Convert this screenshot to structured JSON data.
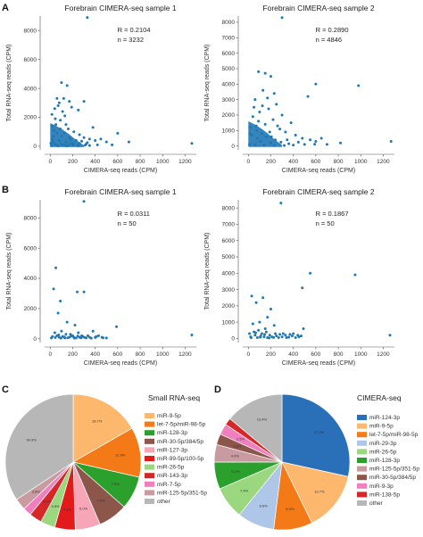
{
  "panel_labels": {
    "A": "A",
    "B": "B",
    "C": "C",
    "D": "D"
  },
  "chart_data": [
    {
      "id": "A1",
      "type": "scatter",
      "title": "Forebrain CIMERA-seq sample 1",
      "xlabel": "CIMERA-seq reads (CPM)",
      "ylabel": "Total RNA-seq reads (CPM)",
      "xlim": [
        -50,
        1300
      ],
      "ylim": [
        -250,
        9000
      ],
      "xticks": [
        0,
        200,
        400,
        600,
        800,
        1000,
        1200
      ],
      "yticks": [
        0,
        2000,
        4000,
        6000,
        8000
      ],
      "stats": {
        "r": "R = 0.2104",
        "n": "n = 3232"
      },
      "color": "#1f77b4",
      "points": [
        [
          330,
          8900
        ],
        [
          100,
          4400
        ],
        [
          150,
          4200
        ],
        [
          60,
          3300
        ],
        [
          120,
          3300
        ],
        [
          170,
          3100
        ],
        [
          300,
          3100
        ],
        [
          80,
          3000
        ],
        [
          190,
          2700
        ],
        [
          40,
          2600
        ],
        [
          250,
          2500
        ],
        [
          110,
          2400
        ],
        [
          380,
          1300
        ],
        [
          140,
          1500
        ],
        [
          20,
          1400
        ],
        [
          90,
          1800
        ],
        [
          130,
          2100
        ],
        [
          30,
          1100
        ],
        [
          160,
          1200
        ],
        [
          210,
          1000
        ],
        [
          60,
          900
        ],
        [
          260,
          800
        ],
        [
          100,
          700
        ],
        [
          300,
          600
        ],
        [
          350,
          500
        ],
        [
          450,
          500
        ],
        [
          400,
          400
        ],
        [
          500,
          300
        ],
        [
          170,
          600
        ],
        [
          230,
          400
        ],
        [
          20,
          500
        ],
        [
          80,
          400
        ],
        [
          140,
          300
        ],
        [
          190,
          200
        ],
        [
          260,
          200
        ],
        [
          320,
          150
        ],
        [
          40,
          150
        ],
        [
          110,
          100
        ],
        [
          200,
          80
        ],
        [
          10,
          50
        ],
        [
          70,
          30
        ],
        [
          150,
          20
        ],
        [
          250,
          20
        ],
        [
          350,
          50
        ],
        [
          600,
          900
        ],
        [
          700,
          300
        ],
        [
          1260,
          200
        ],
        [
          550,
          100
        ],
        [
          30,
          700
        ],
        [
          50,
          1500
        ],
        [
          15,
          2200
        ],
        [
          70,
          2800
        ],
        [
          45,
          1900
        ],
        [
          90,
          1200
        ],
        [
          125,
          900
        ],
        [
          180,
          450
        ],
        [
          210,
          150
        ],
        [
          280,
          350
        ],
        [
          330,
          250
        ],
        [
          420,
          100
        ],
        [
          5,
          200
        ],
        [
          25,
          300
        ],
        [
          55,
          80
        ],
        [
          95,
          180
        ],
        [
          135,
          60
        ],
        [
          165,
          120
        ],
        [
          245,
          90
        ],
        [
          310,
          70
        ]
      ]
    },
    {
      "id": "A2",
      "type": "scatter",
      "title": "Forebrain CIMERA-seq sample 2",
      "xlabel": "CIMERA-seq reads (CPM)",
      "ylabel": "Total RNA-seq reads (CPM)",
      "xlim": [
        -50,
        1300
      ],
      "ylim": [
        -250,
        8400
      ],
      "xticks": [
        0,
        200,
        400,
        600,
        800,
        1000,
        1200
      ],
      "yticks": [
        0,
        1000,
        2000,
        3000,
        4000,
        5000,
        6000,
        7000,
        8000
      ],
      "stats": {
        "r": "R = 0.2890",
        "n": "n = 4846"
      },
      "color": "#1f77b4",
      "points": [
        [
          300,
          8300
        ],
        [
          90,
          4800
        ],
        [
          150,
          4700
        ],
        [
          200,
          4500
        ],
        [
          600,
          4000
        ],
        [
          980,
          3900
        ],
        [
          530,
          3200
        ],
        [
          130,
          3600
        ],
        [
          60,
          3000
        ],
        [
          250,
          2700
        ],
        [
          180,
          2400
        ],
        [
          100,
          2200
        ],
        [
          300,
          2000
        ],
        [
          40,
          1900
        ],
        [
          220,
          1700
        ],
        [
          380,
          1500
        ],
        [
          150,
          1400
        ],
        [
          70,
          1300
        ],
        [
          20,
          1200
        ],
        [
          280,
          1100
        ],
        [
          330,
          900
        ],
        [
          120,
          800
        ],
        [
          420,
          700
        ],
        [
          480,
          500
        ],
        [
          550,
          400
        ],
        [
          600,
          300
        ],
        [
          650,
          500
        ],
        [
          1270,
          300
        ],
        [
          820,
          200
        ],
        [
          700,
          100
        ],
        [
          160,
          600
        ],
        [
          240,
          400
        ],
        [
          80,
          500
        ],
        [
          30,
          700
        ],
        [
          110,
          300
        ],
        [
          200,
          200
        ],
        [
          290,
          250
        ],
        [
          360,
          150
        ],
        [
          10,
          100
        ],
        [
          60,
          80
        ],
        [
          140,
          50
        ],
        [
          230,
          40
        ],
        [
          320,
          30
        ],
        [
          400,
          60
        ],
        [
          500,
          100
        ],
        [
          590,
          120
        ],
        [
          190,
          900
        ],
        [
          260,
          1300
        ],
        [
          90,
          1600
        ],
        [
          50,
          2500
        ],
        [
          170,
          3100
        ],
        [
          230,
          3400
        ],
        [
          125,
          2600
        ],
        [
          15,
          800
        ],
        [
          75,
          1000
        ],
        [
          205,
          600
        ],
        [
          345,
          400
        ],
        [
          445,
          250
        ]
      ]
    },
    {
      "id": "B1",
      "type": "scatter",
      "title": "Forebrain CIMERA-seq sample 1",
      "xlabel": "CIMERA-seq reads (CPM)",
      "ylabel": "Total RNA-seq reads (CPM)",
      "xlim": [
        -50,
        1300
      ],
      "ylim": [
        -250,
        9200
      ],
      "xticks": [
        0,
        200,
        400,
        600,
        800,
        1000,
        1200
      ],
      "yticks": [
        0,
        2000,
        4000,
        6000,
        8000
      ],
      "stats": {
        "r": "R = 0.0311",
        "n": "n = 50"
      },
      "color": "#1f77b4",
      "points": [
        [
          300,
          9100
        ],
        [
          50,
          4700
        ],
        [
          30,
          3300
        ],
        [
          240,
          3100
        ],
        [
          300,
          3100
        ],
        [
          90,
          2500
        ],
        [
          70,
          1700
        ],
        [
          150,
          1100
        ],
        [
          220,
          900
        ],
        [
          590,
          800
        ],
        [
          380,
          500
        ],
        [
          1260,
          250
        ],
        [
          20,
          150
        ],
        [
          60,
          200
        ],
        [
          80,
          100
        ],
        [
          110,
          150
        ],
        [
          140,
          300
        ],
        [
          170,
          100
        ],
        [
          200,
          200
        ],
        [
          230,
          50
        ],
        [
          260,
          100
        ],
        [
          290,
          150
        ],
        [
          320,
          50
        ],
        [
          350,
          100
        ],
        [
          400,
          80
        ],
        [
          430,
          200
        ],
        [
          460,
          100
        ],
        [
          500,
          50
        ],
        [
          40,
          400
        ],
        [
          100,
          500
        ],
        [
          130,
          50
        ],
        [
          180,
          300
        ],
        [
          210,
          100
        ],
        [
          250,
          400
        ],
        [
          280,
          200
        ],
        [
          10,
          50
        ],
        [
          45,
          80
        ],
        [
          75,
          250
        ],
        [
          95,
          40
        ],
        [
          125,
          120
        ],
        [
          155,
          60
        ],
        [
          185,
          160
        ],
        [
          215,
          40
        ],
        [
          245,
          180
        ],
        [
          275,
          60
        ],
        [
          305,
          90
        ],
        [
          335,
          200
        ],
        [
          365,
          40
        ],
        [
          410,
          150
        ],
        [
          470,
          60
        ]
      ]
    },
    {
      "id": "B2",
      "type": "scatter",
      "title": "Forebrain CIMERA-seq sample 2",
      "xlabel": "CIMERA-seq reads (CPM)",
      "ylabel": "Total RNA-seq reads (CPM)",
      "xlim": [
        -50,
        1300
      ],
      "ylim": [
        -250,
        8500
      ],
      "xticks": [
        0,
        200,
        400,
        600,
        800,
        1000,
        1200
      ],
      "yticks": [
        0,
        1000,
        2000,
        3000,
        4000,
        5000,
        6000,
        7000,
        8000
      ],
      "stats": {
        "r": "R = 0.1867",
        "n": "n = 50"
      },
      "color": "#1f77b4",
      "points": [
        [
          290,
          8300
        ],
        [
          550,
          4000
        ],
        [
          950,
          3900
        ],
        [
          480,
          3100
        ],
        [
          30,
          2600
        ],
        [
          130,
          2500
        ],
        [
          70,
          2200
        ],
        [
          200,
          1800
        ],
        [
          170,
          1300
        ],
        [
          100,
          1000
        ],
        [
          40,
          900
        ],
        [
          230,
          800
        ],
        [
          150,
          600
        ],
        [
          490,
          600
        ],
        [
          1260,
          200
        ],
        [
          20,
          100
        ],
        [
          60,
          200
        ],
        [
          80,
          50
        ],
        [
          110,
          150
        ],
        [
          140,
          100
        ],
        [
          170,
          50
        ],
        [
          190,
          200
        ],
        [
          210,
          100
        ],
        [
          250,
          150
        ],
        [
          270,
          50
        ],
        [
          300,
          100
        ],
        [
          330,
          200
        ],
        [
          360,
          80
        ],
        [
          390,
          150
        ],
        [
          420,
          50
        ],
        [
          450,
          100
        ],
        [
          10,
          300
        ],
        [
          50,
          400
        ],
        [
          90,
          500
        ],
        [
          120,
          300
        ],
        [
          160,
          400
        ],
        [
          240,
          300
        ],
        [
          280,
          250
        ],
        [
          310,
          300
        ],
        [
          340,
          50
        ],
        [
          370,
          250
        ],
        [
          400,
          300
        ],
        [
          440,
          200
        ],
        [
          470,
          150
        ],
        [
          25,
          50
        ],
        [
          65,
          350
        ],
        [
          105,
          80
        ],
        [
          145,
          250
        ],
        [
          185,
          30
        ],
        [
          225,
          60
        ]
      ]
    },
    {
      "id": "C",
      "type": "pie",
      "title": "Small RNA-seq",
      "legend_position": "right",
      "slices": [
        {
          "name": "miR-9-5p",
          "value": 16.7,
          "label": "16.7%",
          "color": "#fdb86e"
        },
        {
          "name": "let-7-5p/miR-98-5p",
          "value": 11.9,
          "label": "11.9%",
          "color": "#f47a18"
        },
        {
          "name": "miR-128-3p",
          "value": 7.9,
          "label": "7.9%",
          "color": "#2ca02c"
        },
        {
          "name": "miR-30-5p/384/5p",
          "value": 7.0,
          "label": "7.0%",
          "color": "#8c564b"
        },
        {
          "name": "miR-127-3p",
          "value": 6.0,
          "label": "6.0%",
          "color": "#f7a6b7"
        },
        {
          "name": "miR-99-5p/100-5p",
          "value": 4.9,
          "label": "4.9%",
          "color": "#e31a1c"
        },
        {
          "name": "miR-26-5p",
          "value": 3.5,
          "label": "3.5%",
          "color": "#9ad77f"
        },
        {
          "name": "miR-143-3p",
          "value": 3.0,
          "label": "3.0%",
          "color": "#d62728"
        },
        {
          "name": "miR-7-5p",
          "value": 2.0,
          "label": "2.0%",
          "color": "#f07fbf"
        },
        {
          "name": "miR-125-5p/351-5p",
          "value": 2.8,
          "label": "2.8%",
          "color": "#c99aa0"
        },
        {
          "name": "other",
          "value": 34.3,
          "label": "34.3%",
          "color": "#b7b7b7"
        }
      ]
    },
    {
      "id": "D",
      "type": "pie",
      "title": "CIMERA-seq",
      "legend_position": "right",
      "slices": [
        {
          "name": "miR-124-3p",
          "value": 27.3,
          "label": "27.3%",
          "color": "#2a70b8"
        },
        {
          "name": "miR-9-5p",
          "value": 13.7,
          "label": "13.7%",
          "color": "#fdb86e"
        },
        {
          "name": "let-7-5p/miR-98-5p",
          "value": 8.9,
          "label": "8.9%",
          "color": "#f47a18"
        },
        {
          "name": "miR-29-3p",
          "value": 8.5,
          "label": "8.5%",
          "color": "#aec7e8"
        },
        {
          "name": "miR-26-5p",
          "value": 7.4,
          "label": "7.4%",
          "color": "#9ad77f"
        },
        {
          "name": "miR-128-3p",
          "value": 6.2,
          "label": "6.2%",
          "color": "#2ca02c"
        },
        {
          "name": "miR-125-5p/351-5p",
          "value": 4.0,
          "label": "4.0%",
          "color": "#c99aa0"
        },
        {
          "name": "miR-30-5p/384/5p",
          "value": 2.5,
          "label": "2.5%",
          "color": "#8c564b"
        },
        {
          "name": "miR-9-3p",
          "value": 2.5,
          "label": "2.5%",
          "color": "#f07fbf"
        },
        {
          "name": "miR-138-5p",
          "value": 1.6,
          "label": "1.6%",
          "color": "#d62728"
        },
        {
          "name": "other",
          "value": 13.4,
          "label": "13.4%",
          "color": "#b7b7b7"
        }
      ]
    }
  ]
}
